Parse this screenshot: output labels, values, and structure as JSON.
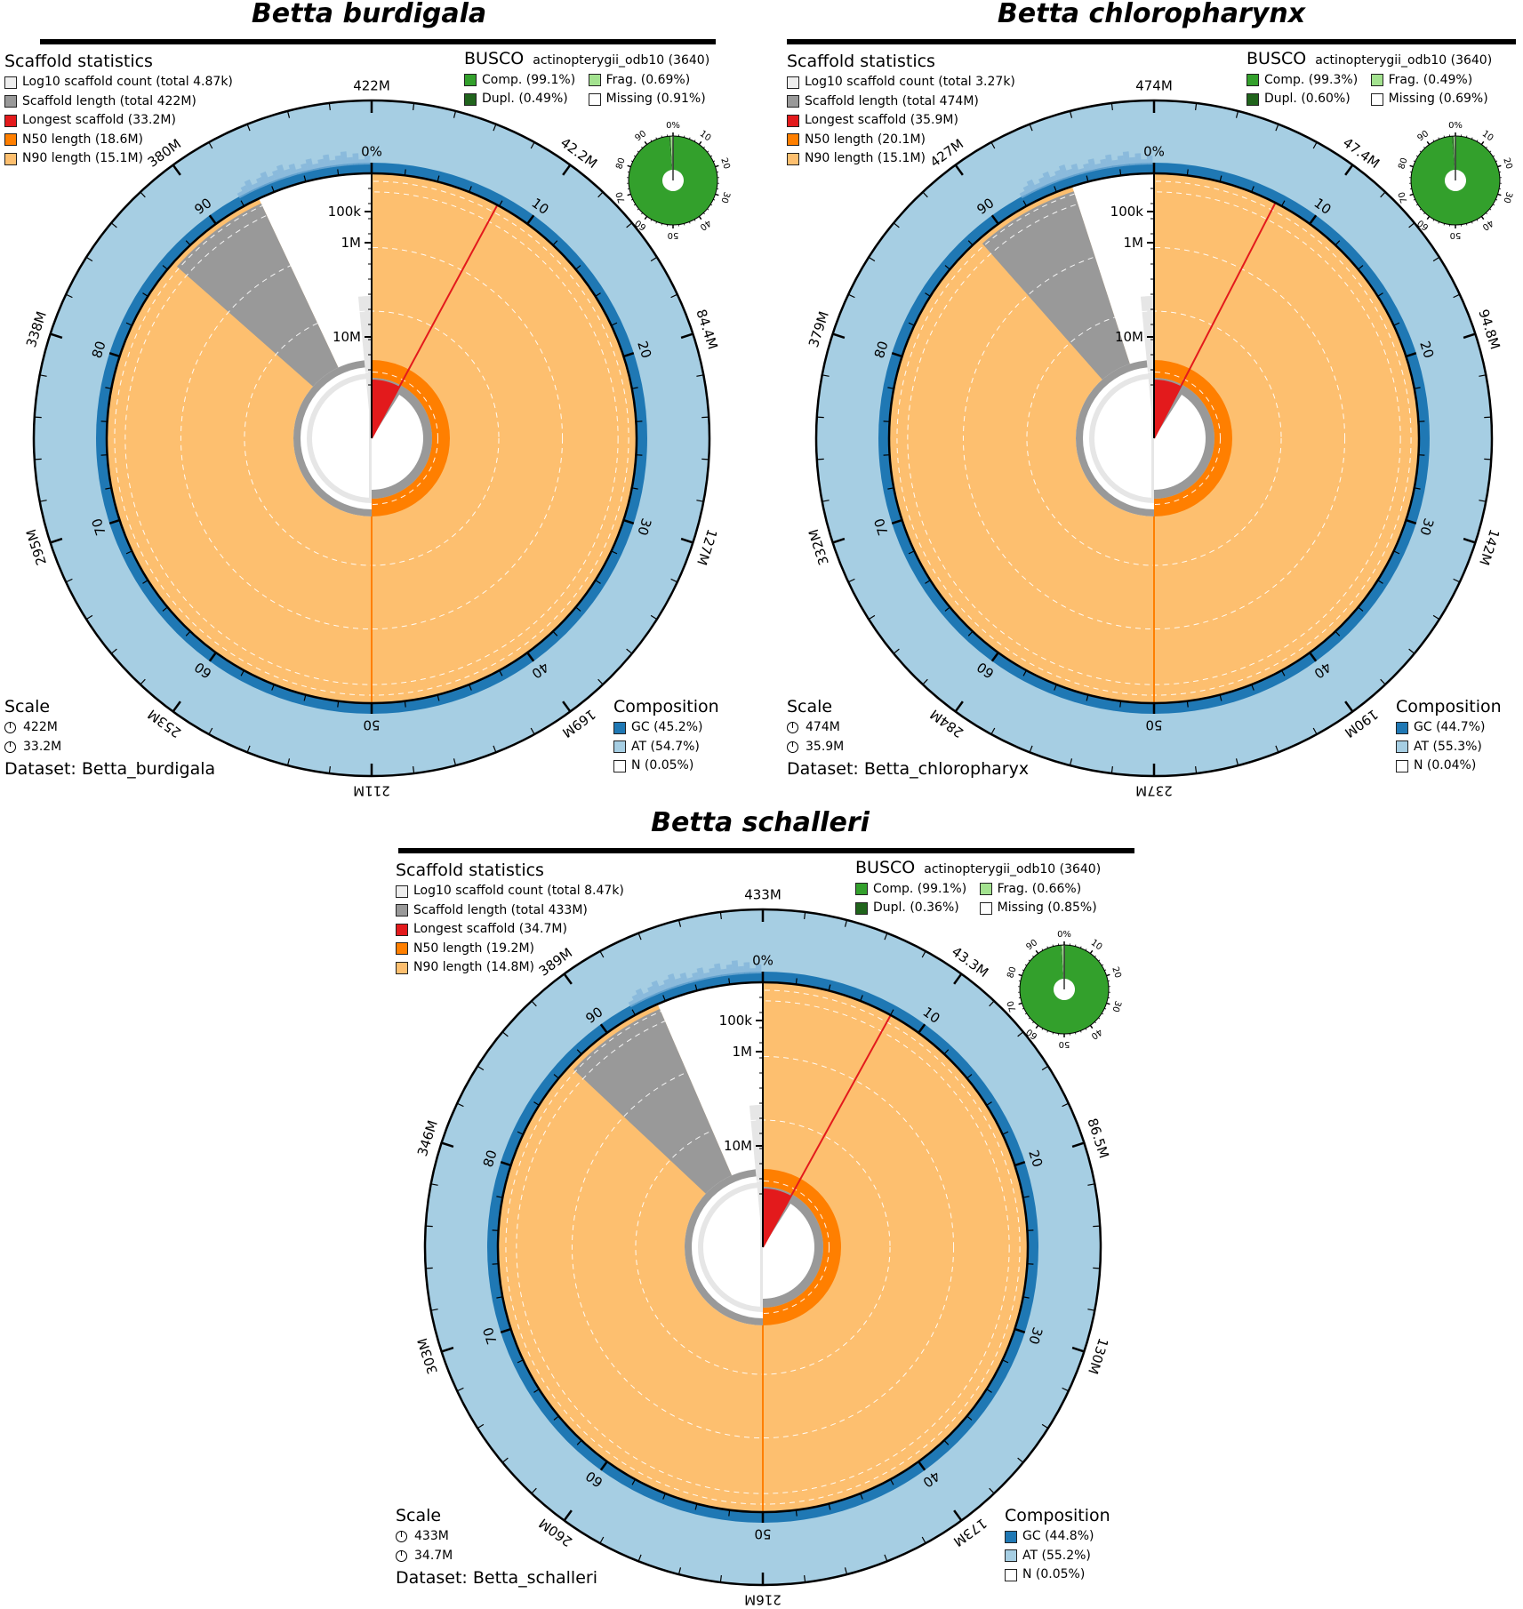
{
  "chart_data": [
    {
      "type": "snail",
      "title": "Betta burdigala",
      "dataset": "Dataset: Betta_burdigala",
      "scaffold_statistics": {
        "heading": "Scaffold statistics",
        "items": [
          {
            "label": "Log10 scaffold count (total 4.87k)",
            "color": "#eeeeee"
          },
          {
            "label": "Scaffold length (total 422M)",
            "color": "#999999"
          },
          {
            "label": "Longest scaffold (33.2M)",
            "color": "#e31a1c"
          },
          {
            "label": "N50 length (18.6M)",
            "color": "#ff7f00"
          },
          {
            "label": "N90 length (15.1M)",
            "color": "#fdbf6f"
          }
        ],
        "total_length": 422,
        "longest": 33.2,
        "n50": 18.6,
        "n90": 15.1
      },
      "busco": {
        "heading": "BUSCO",
        "lineage": "actinopterygii_odb10 (3640)",
        "items": [
          {
            "label": "Comp. (99.1%)",
            "color": "#33a02c"
          },
          {
            "label": "Frag. (0.69%)",
            "color": "#a3e28f"
          },
          {
            "label": "Dupl. (0.49%)",
            "color": "#20641c"
          },
          {
            "label": "Missing (0.91%)",
            "color": "#ffffff"
          }
        ],
        "complete": 99.1,
        "fragmented": 0.69,
        "duplicated": 0.49,
        "missing": 0.91,
        "ticks": [
          "0%",
          "10",
          "20",
          "30",
          "40",
          "50",
          "60",
          "70",
          "80",
          "90"
        ]
      },
      "scale": {
        "heading": "Scale",
        "circumference": "422M",
        "radius": "33.2M"
      },
      "composition": {
        "heading": "Composition",
        "items": [
          {
            "label": "GC (45.2%)",
            "color": "#1f78b4"
          },
          {
            "label": "AT (54.7%)",
            "color": "#a6cee3"
          },
          {
            "label": "N (0.05%)",
            "color": "#ffffff"
          }
        ]
      },
      "outer_ticks": [
        "422M",
        "42.2M",
        "84.4M",
        "127M",
        "169M",
        "211M",
        "253M",
        "295M",
        "338M",
        "380M"
      ],
      "percent_ticks": [
        "0%",
        "10",
        "20",
        "30",
        "40",
        "50",
        "60",
        "70",
        "80",
        "90"
      ],
      "radial_ticks": [
        "100k",
        "1M",
        "10M"
      ],
      "gray_wedge_end_pct": 93.0,
      "gray_wedge_start_pct": 86.5
    },
    {
      "type": "snail",
      "title": "Betta chloropharynx",
      "dataset": "Dataset: Betta_chloropharyx",
      "scaffold_statistics": {
        "heading": "Scaffold statistics",
        "items": [
          {
            "label": "Log10 scaffold count (total 3.27k)",
            "color": "#eeeeee"
          },
          {
            "label": "Scaffold length (total 474M)",
            "color": "#999999"
          },
          {
            "label": "Longest scaffold (35.9M)",
            "color": "#e31a1c"
          },
          {
            "label": "N50 length (20.1M)",
            "color": "#ff7f00"
          },
          {
            "label": "N90 length (15.1M)",
            "color": "#fdbf6f"
          }
        ],
        "total_length": 474,
        "longest": 35.9,
        "n50": 20.1,
        "n90": 15.1
      },
      "busco": {
        "heading": "BUSCO",
        "lineage": "actinopterygii_odb10 (3640)",
        "items": [
          {
            "label": "Comp. (99.3%)",
            "color": "#33a02c"
          },
          {
            "label": "Frag. (0.49%)",
            "color": "#a3e28f"
          },
          {
            "label": "Dupl. (0.60%)",
            "color": "#20641c"
          },
          {
            "label": "Missing (0.69%)",
            "color": "#ffffff"
          }
        ],
        "complete": 99.3,
        "fragmented": 0.49,
        "duplicated": 0.6,
        "missing": 0.69,
        "ticks": [
          "0%",
          "10",
          "20",
          "30",
          "40",
          "50",
          "60",
          "70",
          "80",
          "90"
        ]
      },
      "scale": {
        "heading": "Scale",
        "circumference": "474M",
        "radius": "35.9M"
      },
      "composition": {
        "heading": "Composition",
        "items": [
          {
            "label": "GC (44.7%)",
            "color": "#1f78b4"
          },
          {
            "label": "AT (55.3%)",
            "color": "#a6cee3"
          },
          {
            "label": "N (0.04%)",
            "color": "#ffffff"
          }
        ]
      },
      "outer_ticks": [
        "474M",
        "47.4M",
        "94.8M",
        "142M",
        "190M",
        "237M",
        "284M",
        "332M",
        "379M",
        "427M"
      ],
      "percent_ticks": [
        "0%",
        "10",
        "20",
        "30",
        "40",
        "50",
        "60",
        "70",
        "80",
        "90"
      ],
      "radial_ticks": [
        "100k",
        "1M",
        "10M"
      ],
      "gray_wedge_end_pct": 95.0,
      "gray_wedge_start_pct": 88.5
    },
    {
      "type": "snail",
      "title": "Betta schalleri",
      "dataset": "Dataset: Betta_schalleri",
      "scaffold_statistics": {
        "heading": "Scaffold statistics",
        "items": [
          {
            "label": "Log10 scaffold count (total 8.47k)",
            "color": "#eeeeee"
          },
          {
            "label": "Scaffold length (total 433M)",
            "color": "#999999"
          },
          {
            "label": "Longest scaffold (34.7M)",
            "color": "#e31a1c"
          },
          {
            "label": "N50 length (19.2M)",
            "color": "#ff7f00"
          },
          {
            "label": "N90 length (14.8M)",
            "color": "#fdbf6f"
          }
        ],
        "total_length": 433,
        "longest": 34.7,
        "n50": 19.2,
        "n90": 14.8
      },
      "busco": {
        "heading": "BUSCO",
        "lineage": "actinopterygii_odb10 (3640)",
        "items": [
          {
            "label": "Comp. (99.1%)",
            "color": "#33a02c"
          },
          {
            "label": "Frag. (0.66%)",
            "color": "#a3e28f"
          },
          {
            "label": "Dupl. (0.36%)",
            "color": "#20641c"
          },
          {
            "label": "Missing (0.85%)",
            "color": "#ffffff"
          }
        ],
        "complete": 99.1,
        "fragmented": 0.66,
        "duplicated": 0.36,
        "missing": 0.85,
        "ticks": [
          "0%",
          "10",
          "20",
          "30",
          "40",
          "50",
          "60",
          "70",
          "80",
          "90"
        ]
      },
      "scale": {
        "heading": "Scale",
        "circumference": "433M",
        "radius": "34.7M"
      },
      "composition": {
        "heading": "Composition",
        "items": [
          {
            "label": "GC (44.8%)",
            "color": "#1f78b4"
          },
          {
            "label": "AT (55.2%)",
            "color": "#a6cee3"
          },
          {
            "label": "N (0.05%)",
            "color": "#ffffff"
          }
        ]
      },
      "outer_ticks": [
        "433M",
        "43.3M",
        "86.5M",
        "130M",
        "173M",
        "216M",
        "260M",
        "303M",
        "346M",
        "389M"
      ],
      "percent_ticks": [
        "0%",
        "10",
        "20",
        "30",
        "40",
        "50",
        "60",
        "70",
        "80",
        "90"
      ],
      "radial_ticks": [
        "100k",
        "1M",
        "10M"
      ],
      "gray_wedge_end_pct": 93.5,
      "gray_wedge_start_pct": 87.0
    }
  ]
}
